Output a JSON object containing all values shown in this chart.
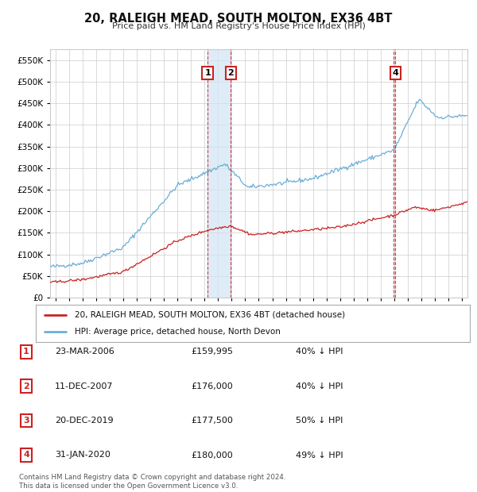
{
  "title": "20, RALEIGH MEAD, SOUTH MOLTON, EX36 4BT",
  "subtitle": "Price paid vs. HM Land Registry's House Price Index (HPI)",
  "legend_line1": "20, RALEIGH MEAD, SOUTH MOLTON, EX36 4BT (detached house)",
  "legend_line2": "HPI: Average price, detached house, North Devon",
  "footer1": "Contains HM Land Registry data © Crown copyright and database right 2024.",
  "footer2": "This data is licensed under the Open Government Licence v3.0.",
  "transactions": [
    {
      "num": 1,
      "date": "23-MAR-2006",
      "price": "£159,995",
      "pct": "40% ↓ HPI",
      "x_year": 2006.22
    },
    {
      "num": 2,
      "date": "11-DEC-2007",
      "price": "£176,000",
      "pct": "40% ↓ HPI",
      "x_year": 2007.94
    },
    {
      "num": 3,
      "date": "20-DEC-2019",
      "price": "£177,500",
      "pct": "50% ↓ HPI",
      "x_year": 2019.97
    },
    {
      "num": 4,
      "date": "31-JAN-2020",
      "price": "£180,000",
      "pct": "49% ↓ HPI",
      "x_year": 2020.08
    }
  ],
  "hpi_color": "#6baed6",
  "price_color": "#cc2222",
  "highlight_color": "#d0e4f5",
  "background_color": "#ffffff",
  "grid_color": "#cccccc",
  "ylim": [
    0,
    575000
  ],
  "xlim_start": 1994.6,
  "xlim_end": 2025.4
}
